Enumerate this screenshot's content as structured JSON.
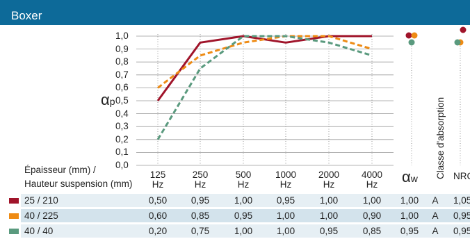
{
  "header": {
    "title": "Boxer"
  },
  "chart_data": {
    "type": "line",
    "x": [
      "125",
      "250",
      "500",
      "1000",
      "2000",
      "4000"
    ],
    "x_unit": "Hz",
    "ylabel": "α",
    "ylabel_sub": "p",
    "ylim": [
      0,
      1
    ],
    "yticks": [
      "0,0",
      "0,1",
      "0,2",
      "0,3",
      "0,4",
      "0,5",
      "0,6",
      "0,7",
      "0,8",
      "0,9",
      "1,0"
    ],
    "grid": true,
    "series": [
      {
        "name": "25 / 210",
        "color": "#a0142a",
        "dash": "solid",
        "values": [
          0.5,
          0.95,
          1.0,
          0.95,
          1.0,
          1.0
        ]
      },
      {
        "name": "40 / 225",
        "color": "#ee8b14",
        "dash": "dashed",
        "values": [
          0.6,
          0.85,
          0.95,
          1.0,
          1.0,
          0.9
        ]
      },
      {
        "name": "40 / 40",
        "color": "#5a9a7e",
        "dash": "dashed",
        "values": [
          0.2,
          0.75,
          1.0,
          1.0,
          0.95,
          0.85
        ]
      }
    ]
  },
  "side": {
    "alpha_w_symbol": "α",
    "alpha_w_sub": "w",
    "class_label": "Classe d'absorption",
    "nrc_label": "NRC"
  },
  "table": {
    "header_line1": "Épaisseur (mm) /",
    "header_line2": "Hauteur suspension (mm)",
    "rows": [
      {
        "label": "25 / 210",
        "values": [
          "0,50",
          "0,95",
          "1,00",
          "0,95",
          "1,00",
          "1,00"
        ],
        "alpha_w": "1,00",
        "class": "A",
        "nrc": "1,05",
        "alpha_w_num": 1.0,
        "nrc_num": 1.05
      },
      {
        "label": "40 / 225",
        "values": [
          "0,60",
          "0,85",
          "0,95",
          "1,00",
          "1,00",
          "0,90"
        ],
        "alpha_w": "1,00",
        "class": "A",
        "nrc": "0,95",
        "alpha_w_num": 1.0,
        "nrc_num": 0.95
      },
      {
        "label": "40 / 40",
        "values": [
          "0,20",
          "0,75",
          "1,00",
          "1,00",
          "0,95",
          "0,85"
        ],
        "alpha_w": "0,95",
        "class": "A",
        "nrc": "0,95",
        "alpha_w_num": 0.95,
        "nrc_num": 0.95
      }
    ]
  },
  "colors": {
    "header_bg": "#0d6a99",
    "row_alt_a": "#e6eff4",
    "row_alt_b": "#d3e3ec"
  }
}
